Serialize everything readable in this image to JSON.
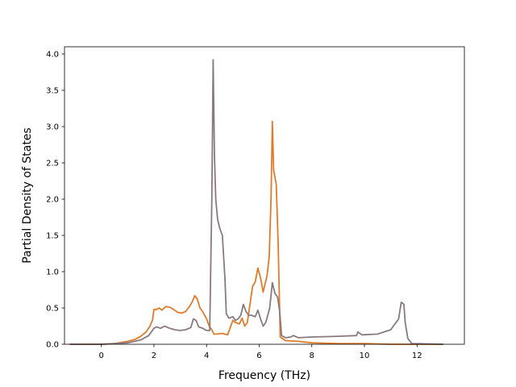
{
  "chart_data": {
    "type": "line",
    "title": "",
    "xlabel": "Frequency (THz)",
    "ylabel": "Partial Density of States",
    "xlim": [
      -1.4,
      13.8
    ],
    "ylim": [
      0,
      4.1
    ],
    "xticks": [
      0,
      2,
      4,
      6,
      8,
      10,
      12
    ],
    "yticks": [
      0.0,
      0.5,
      1.0,
      1.5,
      2.0,
      2.5,
      3.0,
      3.5,
      4.0
    ],
    "xtick_labels": [
      "0",
      "2",
      "4",
      "6",
      "8",
      "10",
      "12"
    ],
    "ytick_labels": [
      "0.0",
      "0.5",
      "1.0",
      "1.5",
      "2.0",
      "2.5",
      "3.0",
      "3.5",
      "4.0"
    ],
    "grid": false,
    "legend": "none",
    "series": [
      {
        "color": "#e07b2a",
        "points": [
          [
            -1.2,
            0.0
          ],
          [
            0.0,
            0.0
          ],
          [
            0.5,
            0.01
          ],
          [
            1.0,
            0.04
          ],
          [
            1.3,
            0.07
          ],
          [
            1.5,
            0.11
          ],
          [
            1.7,
            0.17
          ],
          [
            1.85,
            0.25
          ],
          [
            1.95,
            0.34
          ],
          [
            2.0,
            0.48
          ],
          [
            2.1,
            0.48
          ],
          [
            2.2,
            0.5
          ],
          [
            2.3,
            0.47
          ],
          [
            2.45,
            0.52
          ],
          [
            2.6,
            0.51
          ],
          [
            2.75,
            0.48
          ],
          [
            2.9,
            0.44
          ],
          [
            3.05,
            0.43
          ],
          [
            3.2,
            0.45
          ],
          [
            3.35,
            0.52
          ],
          [
            3.45,
            0.58
          ],
          [
            3.55,
            0.67
          ],
          [
            3.65,
            0.62
          ],
          [
            3.75,
            0.5
          ],
          [
            3.85,
            0.45
          ],
          [
            4.0,
            0.35
          ],
          [
            4.1,
            0.25
          ],
          [
            4.2,
            0.2
          ],
          [
            4.28,
            0.14
          ],
          [
            4.4,
            0.14
          ],
          [
            4.6,
            0.15
          ],
          [
            4.8,
            0.13
          ],
          [
            5.0,
            0.33
          ],
          [
            5.1,
            0.3
          ],
          [
            5.25,
            0.28
          ],
          [
            5.35,
            0.36
          ],
          [
            5.45,
            0.25
          ],
          [
            5.55,
            0.3
          ],
          [
            5.65,
            0.55
          ],
          [
            5.75,
            0.8
          ],
          [
            5.85,
            0.86
          ],
          [
            5.95,
            1.05
          ],
          [
            6.05,
            0.92
          ],
          [
            6.15,
            0.72
          ],
          [
            6.25,
            0.87
          ],
          [
            6.3,
            0.95
          ],
          [
            6.38,
            1.2
          ],
          [
            6.45,
            2.0
          ],
          [
            6.5,
            3.07
          ],
          [
            6.55,
            2.4
          ],
          [
            6.65,
            2.2
          ],
          [
            6.72,
            1.4
          ],
          [
            6.8,
            0.1
          ],
          [
            7.0,
            0.05
          ],
          [
            7.5,
            0.04
          ],
          [
            8.0,
            0.02
          ],
          [
            9.0,
            0.01
          ],
          [
            10.0,
            0.01
          ],
          [
            11.0,
            0.0
          ],
          [
            13.0,
            0.0
          ]
        ]
      },
      {
        "color": "#8a7a7e",
        "points": [
          [
            -1.2,
            0.0
          ],
          [
            0.0,
            0.0
          ],
          [
            0.5,
            0.01
          ],
          [
            1.0,
            0.02
          ],
          [
            1.5,
            0.06
          ],
          [
            1.8,
            0.12
          ],
          [
            2.0,
            0.22
          ],
          [
            2.1,
            0.24
          ],
          [
            2.25,
            0.22
          ],
          [
            2.4,
            0.25
          ],
          [
            2.6,
            0.22
          ],
          [
            2.8,
            0.2
          ],
          [
            3.0,
            0.19
          ],
          [
            3.2,
            0.2
          ],
          [
            3.4,
            0.23
          ],
          [
            3.5,
            0.35
          ],
          [
            3.6,
            0.33
          ],
          [
            3.7,
            0.24
          ],
          [
            3.85,
            0.22
          ],
          [
            4.0,
            0.19
          ],
          [
            4.12,
            0.19
          ],
          [
            4.2,
            2.0
          ],
          [
            4.25,
            3.92
          ],
          [
            4.3,
            2.6
          ],
          [
            4.35,
            2.0
          ],
          [
            4.42,
            1.72
          ],
          [
            4.5,
            1.6
          ],
          [
            4.6,
            1.5
          ],
          [
            4.7,
            0.9
          ],
          [
            4.75,
            0.42
          ],
          [
            4.85,
            0.36
          ],
          [
            5.0,
            0.38
          ],
          [
            5.1,
            0.33
          ],
          [
            5.2,
            0.35
          ],
          [
            5.3,
            0.4
          ],
          [
            5.4,
            0.55
          ],
          [
            5.5,
            0.45
          ],
          [
            5.6,
            0.4
          ],
          [
            5.7,
            0.4
          ],
          [
            5.85,
            0.38
          ],
          [
            5.95,
            0.47
          ],
          [
            6.05,
            0.35
          ],
          [
            6.15,
            0.25
          ],
          [
            6.25,
            0.3
          ],
          [
            6.4,
            0.5
          ],
          [
            6.5,
            0.85
          ],
          [
            6.6,
            0.7
          ],
          [
            6.7,
            0.65
          ],
          [
            6.78,
            0.45
          ],
          [
            6.85,
            0.12
          ],
          [
            7.0,
            0.09
          ],
          [
            7.2,
            0.1
          ],
          [
            7.3,
            0.12
          ],
          [
            7.5,
            0.09
          ],
          [
            8.0,
            0.1
          ],
          [
            9.0,
            0.11
          ],
          [
            9.7,
            0.12
          ],
          [
            9.75,
            0.17
          ],
          [
            9.9,
            0.13
          ],
          [
            10.5,
            0.14
          ],
          [
            11.0,
            0.2
          ],
          [
            11.3,
            0.35
          ],
          [
            11.4,
            0.58
          ],
          [
            11.5,
            0.55
          ],
          [
            11.55,
            0.3
          ],
          [
            11.65,
            0.08
          ],
          [
            11.8,
            0.01
          ],
          [
            13.0,
            0.0
          ]
        ]
      }
    ]
  }
}
